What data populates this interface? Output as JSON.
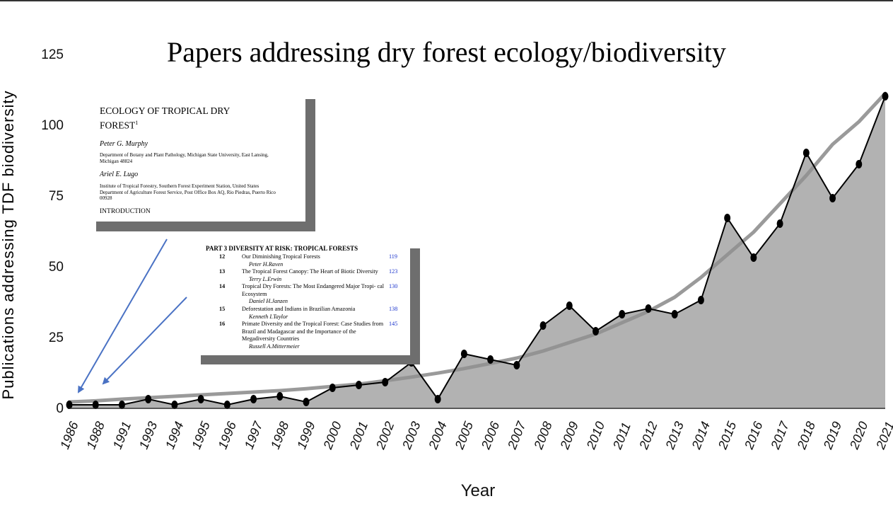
{
  "chart_data": {
    "type": "line",
    "title": "Papers addressing dry forest ecology/biodiversity",
    "xlabel": "Year",
    "ylabel": "Publications addressing TDF biodiversity",
    "categories": [
      "1986",
      "1988",
      "1991",
      "1993",
      "1994",
      "1995",
      "1996",
      "1997",
      "1998",
      "1999",
      "2000",
      "2001",
      "2002",
      "2003",
      "2004",
      "2005",
      "2006",
      "2007",
      "2008",
      "2009",
      "2010",
      "2011",
      "2012",
      "2013",
      "2014",
      "2015",
      "2016",
      "2017",
      "2018",
      "2019",
      "2020",
      "2021"
    ],
    "series": [
      {
        "name": "",
        "style": "filled-area-with-markers",
        "values": [
          1,
          1,
          1,
          3,
          1,
          3,
          1,
          3,
          4,
          2,
          7,
          8,
          9,
          16,
          3,
          19,
          17,
          15,
          29,
          36,
          27,
          33,
          35,
          33,
          38,
          67,
          53,
          65,
          90,
          74,
          86,
          110
        ]
      },
      {
        "name": "",
        "style": "smooth-trend",
        "values": [
          2,
          2.4,
          3,
          3.5,
          4,
          4.5,
          5,
          5.5,
          6,
          6.7,
          7.5,
          8.3,
          9.5,
          10.8,
          12.2,
          13.8,
          15.6,
          17.5,
          20,
          23,
          26,
          30,
          34,
          39,
          46,
          54,
          62,
          72,
          82,
          93,
          101,
          111
        ]
      }
    ],
    "ylim": [
      0,
      125
    ],
    "yticks": [
      0,
      25,
      50,
      75,
      100,
      125
    ],
    "grid": false,
    "legend": "none",
    "colors": {
      "area": "#b2b2b2",
      "line": "#000000",
      "trend": "#8f8f8f",
      "arrow": "#4a72c4"
    }
  },
  "inset1": {
    "title": "ECOLOGY OF TROPICAL DRY FOREST",
    "title_sup": "1",
    "author1": "Peter G. Murphy",
    "affil1": "Department of Botany and Plant Pathology, Michigan State University, East Lansing, Michigan 48824",
    "author2": "Ariel E. Lugo",
    "affil2": "Institute of Tropical Forestry, Southern Forest Experiment Station, United States Department of Agriculture Forest Service, Post Office Box AQ, Rio Piedras, Puerto Rico 00928",
    "intro": "INTRODUCTION"
  },
  "inset2": {
    "part": "PART 3    DIVERSITY AT RISK: TROPICAL FORESTS",
    "entries": [
      {
        "num": "12",
        "title": "Our Diminishing Tropical Forests",
        "author": "Peter H.Raven",
        "page": "119"
      },
      {
        "num": "13",
        "title": "The Tropical Forest Canopy: The Heart of Biotic Diversity",
        "author": "Terry L.Erwin",
        "page": "123"
      },
      {
        "num": "14",
        "title": "Tropical Dry Forests: The Most Endangered Major Tropi- cal Ecosystem",
        "author": "Daniel H.Janzen",
        "page": "130"
      },
      {
        "num": "15",
        "title": "Deforestation and Indians in Brazilian Amazonia",
        "author": "Kenneth I.Taylor",
        "page": "138"
      },
      {
        "num": "16",
        "title": "Primate Diversity and the Tropical Forest: Case Studies from Brazil and Madagascar and the Importance of the Megadiversity Countries",
        "author": "Russell A.Mittermeier",
        "page": "145"
      }
    ]
  }
}
